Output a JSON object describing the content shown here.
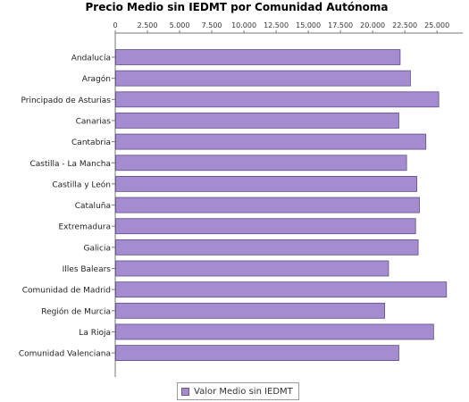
{
  "chart_data": {
    "type": "bar",
    "orientation": "horizontal",
    "title": "Precio Medio sin IEDMT por Comunidad Autónoma",
    "xlabel": "",
    "ylabel": "",
    "xlim": [
      0,
      27000
    ],
    "ticks": [
      "0",
      "2.500",
      "5.000",
      "7.500",
      "10.000",
      "12.500",
      "15.000",
      "17.500",
      "20.000",
      "22.500",
      "25.000"
    ],
    "tick_values": [
      0,
      2500,
      5000,
      7500,
      10000,
      12500,
      15000,
      17500,
      20000,
      22500,
      25000
    ],
    "axis_position": "top",
    "grid": false,
    "legend_position": "bottom",
    "color": "#a58bcf",
    "categories": [
      "Andalucía",
      "Aragón",
      "Principado de Asturias",
      "Canarias",
      "Cantabria",
      "Castilla - La Mancha",
      "Castilla y León",
      "Cataluña",
      "Extremadura",
      "Galicia",
      "Illes Balears",
      "Comunidad de Madrid",
      "Región de Murcia",
      "La Rioja",
      "Comunidad Valenciana"
    ],
    "series": [
      {
        "name": "Valor Medio sin IEDMT",
        "values": [
          22100,
          22900,
          25100,
          22000,
          24100,
          22600,
          23400,
          23600,
          23300,
          23500,
          21200,
          25700,
          20900,
          24700,
          22000
        ]
      }
    ]
  }
}
